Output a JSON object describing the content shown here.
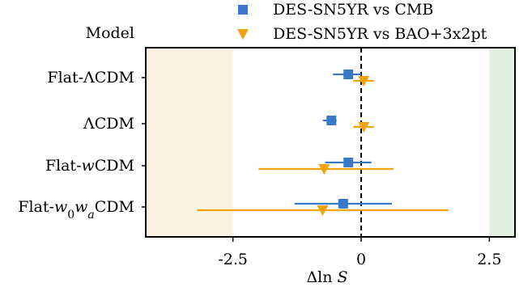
{
  "chart_data": {
    "type": "scatter",
    "column_header": "Model",
    "xlabel": "Δln S",
    "xlim": [
      -4.2,
      3.0
    ],
    "xticks": [
      -2.5,
      0,
      2.5
    ],
    "xtick_labels": [
      "-2.5",
      "0",
      "2.5"
    ],
    "reference_line_x": 0,
    "shaded_bands": [
      {
        "x0": -4.2,
        "x1": -2.5,
        "color": "#fdf3e3"
      },
      {
        "x0": 2.5,
        "x1": 3.0,
        "color": "#e3efe3"
      }
    ],
    "categories": [
      "Flat-ΛCDM",
      "ΛCDM",
      "Flat-wCDM",
      "Flat-w0waCDM"
    ],
    "category_labels": [
      {
        "parts": [
          {
            "t": "Flat-ΛCDM",
            "i": false
          }
        ]
      },
      {
        "parts": [
          {
            "t": "ΛCDM",
            "i": false
          }
        ]
      },
      {
        "parts": [
          {
            "t": "Flat-",
            "i": false
          },
          {
            "t": "w",
            "i": true
          },
          {
            "t": "CDM",
            "i": false
          }
        ]
      },
      {
        "parts": [
          {
            "t": "Flat-",
            "i": false
          },
          {
            "t": "w",
            "i": true
          },
          {
            "t": "0",
            "i": false,
            "sub": true
          },
          {
            "t": "w",
            "i": true
          },
          {
            "t": "a",
            "i": true,
            "sub": true
          },
          {
            "t": "CDM",
            "i": false
          }
        ]
      }
    ],
    "legend_placement": "top-center",
    "series": [
      {
        "name": "DES-SN5YR vs CMB",
        "marker": "square",
        "color": "#3a78c9",
        "values": [
          -0.25,
          -0.58,
          -0.25,
          -0.35
        ],
        "err_low": [
          0.3,
          0.17,
          0.45,
          0.95
        ],
        "err_high": [
          0.25,
          0.1,
          0.45,
          0.95
        ]
      },
      {
        "name": "DES-SN5YR vs BAO+3x2pt",
        "marker": "triangle-down",
        "color": "#f0a30a",
        "values": [
          0.05,
          0.05,
          -0.72,
          -0.75
        ],
        "err_low": [
          0.2,
          0.2,
          1.28,
          2.45
        ],
        "err_high": [
          0.2,
          0.2,
          1.35,
          2.45
        ]
      }
    ]
  }
}
